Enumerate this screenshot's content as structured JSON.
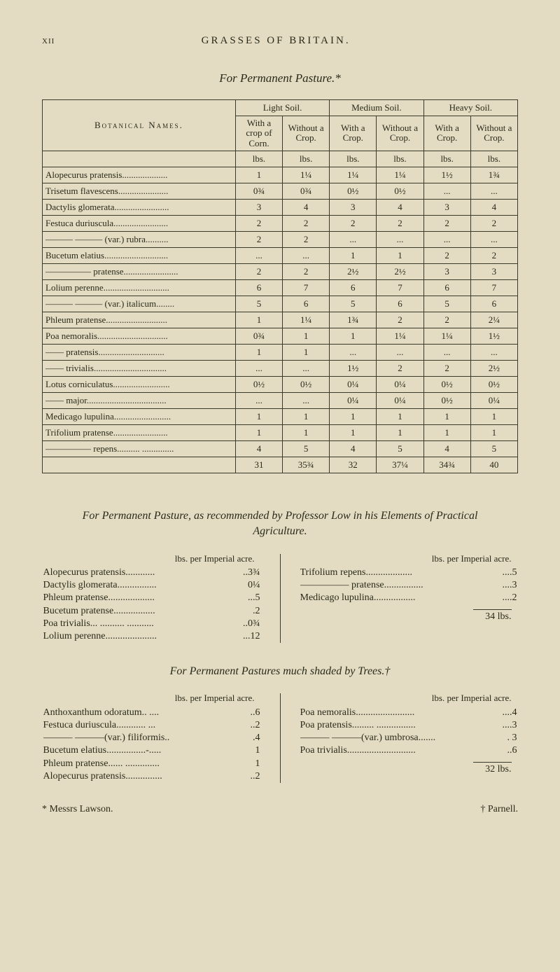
{
  "pageNumber": "xii",
  "runningHead": "GRASSES OF BRITAIN.",
  "tableTitle": "For Permanent Pasture.*",
  "table": {
    "cornerHeader": "Botanical Names.",
    "soilGroups": [
      "Light Soil.",
      "Medium Soil.",
      "Heavy Soil."
    ],
    "subHeaders": [
      "With a crop of Corn.",
      "Without a Crop.",
      "With a Crop.",
      "Without a Crop.",
      "With a Crop.",
      "Without a Crop."
    ],
    "unitRow": [
      "lbs.",
      "lbs.",
      "lbs.",
      "lbs.",
      "lbs.",
      "lbs."
    ],
    "rows": [
      {
        "name": "Alopecurus pratensis....................",
        "v": [
          "1",
          "1¼",
          "1¼",
          "1¼",
          "1½",
          "1¾"
        ]
      },
      {
        "name": "Trisetum flavescens......................",
        "v": [
          "0¾",
          "0¾",
          "0½",
          "0½",
          "...",
          "..."
        ]
      },
      {
        "name": "Dactylis glomerata........................",
        "v": [
          "3",
          "4",
          "3",
          "4",
          "3",
          "4"
        ]
      },
      {
        "name": "Festuca duriuscula........................",
        "v": [
          "2",
          "2",
          "2",
          "2",
          "2",
          "2"
        ]
      },
      {
        "name": "——— ——— (var.) rubra..........",
        "v": [
          "2",
          "2",
          "...",
          "...",
          "...",
          "..."
        ]
      },
      {
        "name": "Bucetum elatius............................",
        "v": [
          "...",
          "...",
          "1",
          "1",
          "2",
          "2"
        ]
      },
      {
        "name": "————— pratense........................",
        "v": [
          "2",
          "2",
          "2½",
          "2½",
          "3",
          "3"
        ]
      },
      {
        "name": "Lolium perenne.............................",
        "v": [
          "6",
          "7",
          "6",
          "7",
          "6",
          "7"
        ]
      },
      {
        "name": "——— ——— (var.) italicum........",
        "v": [
          "5",
          "6",
          "5",
          "6",
          "5",
          "6"
        ]
      },
      {
        "name": "Phleum pratense...........................",
        "v": [
          "1",
          "1¼",
          "1¾",
          "2",
          "2",
          "2¼"
        ]
      },
      {
        "name": "Poa nemoralis...............................",
        "v": [
          "0¾",
          "1",
          "1",
          "1¼",
          "1¼",
          "1½"
        ]
      },
      {
        "name": "—— pratensis.............................",
        "v": [
          "1",
          "1",
          "...",
          "...",
          "...",
          "..."
        ]
      },
      {
        "name": "—— trivialis................................",
        "v": [
          "...",
          "...",
          "1½",
          "2",
          "2",
          "2½"
        ]
      },
      {
        "name": "Lotus corniculatus.........................",
        "v": [
          "0½",
          "0½",
          "0¼",
          "0¼",
          "0½",
          "0½"
        ]
      },
      {
        "name": "—— major...................................",
        "v": [
          "...",
          "...",
          "0¼",
          "0¼",
          "0½",
          "0¼"
        ]
      },
      {
        "name": "Medicago lupulina.........................",
        "v": [
          "1",
          "1",
          "1",
          "1",
          "1",
          "1"
        ]
      },
      {
        "name": "Trifolium pratense........................",
        "v": [
          "1",
          "1",
          "1",
          "1",
          "1",
          "1"
        ]
      },
      {
        "name": "————— repens.......... ..............",
        "v": [
          "4",
          "5",
          "4",
          "5",
          "4",
          "5"
        ]
      }
    ],
    "totals": [
      "31",
      "35¾",
      "32",
      "37¼",
      "34¾",
      "40"
    ]
  },
  "section2": {
    "title": "For Permanent Pasture, as recommended by Professor Low in his Elements of Practical Agriculture.",
    "colHead": "lbs. per Imperial acre.",
    "left": [
      {
        "l": "Alopecurus pratensis............",
        "a": "..3¾"
      },
      {
        "l": "Dactylis glomerata................",
        "a": " 0¼"
      },
      {
        "l": "Phleum pratense...................",
        "a": "...5"
      },
      {
        "l": "Bucetum pratense.................",
        "a": " .2"
      },
      {
        "l": "Poa trivialis... .......... ...........",
        "a": "..0¾"
      },
      {
        "l": "Lolium perenne.....................",
        "a": "...12"
      }
    ],
    "right": [
      {
        "l": "Trifolium repens...................",
        "a": "....5"
      },
      {
        "l": "————— pratense................",
        "a": "....3"
      },
      {
        "l": "Medicago lupulina.................",
        "a": "....2"
      }
    ],
    "rightTotal": "34 lbs."
  },
  "section3": {
    "title": "For Permanent Pastures much shaded by Trees.†",
    "colHead": "lbs. per Imperial acre.",
    "left": [
      {
        "l": "Anthoxanthum odoratum.. ....",
        "a": "..6"
      },
      {
        "l": "Festuca duriuscula............ ...",
        "a": "..2"
      },
      {
        "l": "——— ———(var.) filiformis..",
        "a": ".4"
      },
      {
        "l": "Bucetum elatius................-.....",
        "a": "1"
      },
      {
        "l": "Phleum pratense...... ..............",
        "a": "1"
      },
      {
        "l": "Alopecurus pratensis...............",
        "a": "..2"
      }
    ],
    "right": [
      {
        "l": "Poa nemoralis........................",
        "a": "....4"
      },
      {
        "l": "Poa pratensis......... ................",
        "a": "....3"
      },
      {
        "l": "——— ———(var.) umbrosa.......",
        "a": ". 3"
      },
      {
        "l": "Poa trivialis............................",
        "a": "..6"
      }
    ],
    "rightTotal": "32 lbs."
  },
  "footnoteLeft": "* Messrs Lawson.",
  "footnoteRight": "† Parnell."
}
